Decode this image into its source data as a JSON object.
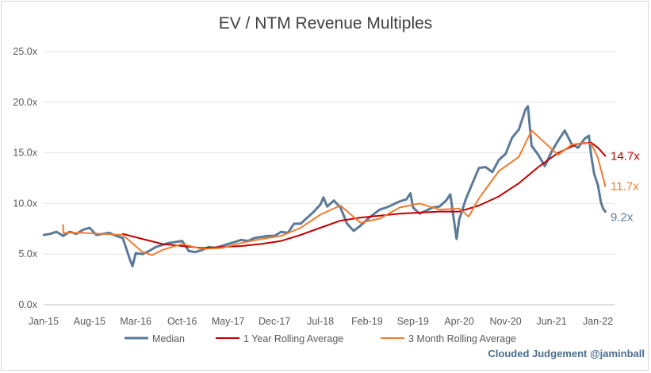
{
  "chart_data": {
    "type": "line",
    "title": "EV / NTM Revenue Multiples",
    "xlabel": "",
    "ylabel": "",
    "ylim": [
      0,
      25
    ],
    "y_ticks": [
      0,
      5,
      10,
      15,
      20,
      25
    ],
    "y_tick_labels": [
      "0.0x",
      "5.0x",
      "10.0x",
      "15.0x",
      "20.0x",
      "25.0x"
    ],
    "x_tick_labels": [
      "Jan-15",
      "Aug-15",
      "Mar-16",
      "Oct-16",
      "May-17",
      "Dec-17",
      "Jul-18",
      "Feb-19",
      "Sep-19",
      "Apr-20",
      "Nov-20",
      "Jun-21",
      "Jan-22"
    ],
    "grid": true,
    "legend_position": "bottom",
    "series": [
      {
        "name": "Median",
        "color": "#5b7a99",
        "end_label": "9.2x",
        "points": [
          [
            "2015-01-02",
            6.9
          ],
          [
            "2015-02-01",
            7.0
          ],
          [
            "2015-03-01",
            7.2
          ],
          [
            "2015-04-01",
            6.8
          ],
          [
            "2015-05-01",
            7.2
          ],
          [
            "2015-06-01",
            7.0
          ],
          [
            "2015-07-01",
            7.4
          ],
          [
            "2015-08-01",
            7.6
          ],
          [
            "2015-09-01",
            6.9
          ],
          [
            "2015-10-01",
            7.0
          ],
          [
            "2015-11-01",
            7.1
          ],
          [
            "2015-12-01",
            6.8
          ],
          [
            "2016-01-01",
            6.6
          ],
          [
            "2016-02-01",
            4.6
          ],
          [
            "2016-02-15",
            3.8
          ],
          [
            "2016-03-01",
            5.1
          ],
          [
            "2016-04-01",
            5.0
          ],
          [
            "2016-05-01",
            5.3
          ],
          [
            "2016-06-01",
            5.7
          ],
          [
            "2016-07-01",
            5.9
          ],
          [
            "2016-08-01",
            6.1
          ],
          [
            "2016-09-01",
            6.2
          ],
          [
            "2016-10-01",
            6.3
          ],
          [
            "2016-11-01",
            5.3
          ],
          [
            "2016-12-01",
            5.2
          ],
          [
            "2017-01-01",
            5.4
          ],
          [
            "2017-02-01",
            5.7
          ],
          [
            "2017-03-01",
            5.6
          ],
          [
            "2017-04-01",
            5.8
          ],
          [
            "2017-05-01",
            6.0
          ],
          [
            "2017-06-01",
            6.2
          ],
          [
            "2017-07-01",
            6.4
          ],
          [
            "2017-08-01",
            6.3
          ],
          [
            "2017-09-01",
            6.6
          ],
          [
            "2017-10-01",
            6.7
          ],
          [
            "2017-11-01",
            6.8
          ],
          [
            "2017-12-01",
            6.8
          ],
          [
            "2018-01-01",
            7.2
          ],
          [
            "2018-02-01",
            7.1
          ],
          [
            "2018-03-01",
            8.0
          ],
          [
            "2018-04-01",
            8.0
          ],
          [
            "2018-05-01",
            8.6
          ],
          [
            "2018-06-01",
            9.2
          ],
          [
            "2018-07-01",
            9.9
          ],
          [
            "2018-07-15",
            10.6
          ],
          [
            "2018-08-01",
            9.7
          ],
          [
            "2018-09-01",
            10.3
          ],
          [
            "2018-10-01",
            9.6
          ],
          [
            "2018-11-01",
            8.0
          ],
          [
            "2018-12-01",
            7.3
          ],
          [
            "2019-01-01",
            7.8
          ],
          [
            "2019-02-01",
            8.4
          ],
          [
            "2019-03-01",
            8.9
          ],
          [
            "2019-04-01",
            9.4
          ],
          [
            "2019-05-01",
            9.6
          ],
          [
            "2019-06-01",
            9.9
          ],
          [
            "2019-07-01",
            10.2
          ],
          [
            "2019-08-01",
            10.4
          ],
          [
            "2019-08-20",
            11.0
          ],
          [
            "2019-09-01",
            9.6
          ],
          [
            "2019-10-01",
            9.0
          ],
          [
            "2019-11-01",
            9.3
          ],
          [
            "2019-12-01",
            9.6
          ],
          [
            "2020-01-01",
            9.7
          ],
          [
            "2020-02-01",
            10.3
          ],
          [
            "2020-02-20",
            10.9
          ],
          [
            "2020-03-10",
            8.0
          ],
          [
            "2020-03-20",
            6.5
          ],
          [
            "2020-04-01",
            8.4
          ],
          [
            "2020-05-01",
            10.4
          ],
          [
            "2020-06-01",
            12.0
          ],
          [
            "2020-07-01",
            13.5
          ],
          [
            "2020-08-01",
            13.6
          ],
          [
            "2020-09-01",
            13.1
          ],
          [
            "2020-10-01",
            14.3
          ],
          [
            "2020-11-01",
            14.9
          ],
          [
            "2020-12-01",
            16.5
          ],
          [
            "2021-01-01",
            17.3
          ],
          [
            "2021-02-01",
            19.3
          ],
          [
            "2021-02-12",
            19.6
          ],
          [
            "2021-03-01",
            15.7
          ],
          [
            "2021-04-01",
            14.8
          ],
          [
            "2021-05-01",
            13.7
          ],
          [
            "2021-06-01",
            15.1
          ],
          [
            "2021-07-01",
            16.2
          ],
          [
            "2021-08-01",
            17.2
          ],
          [
            "2021-09-01",
            15.9
          ],
          [
            "2021-10-01",
            15.5
          ],
          [
            "2021-11-01",
            16.4
          ],
          [
            "2021-11-20",
            16.7
          ],
          [
            "2021-12-01",
            14.7
          ],
          [
            "2021-12-15",
            12.9
          ],
          [
            "2022-01-01",
            11.8
          ],
          [
            "2022-01-15",
            10.1
          ],
          [
            "2022-01-25",
            9.5
          ],
          [
            "2022-02-04",
            9.2
          ]
        ]
      },
      {
        "name": "1 Year Rolling Average",
        "color": "#c00000",
        "end_label": "14.7x",
        "points": [
          [
            "2016-01-01",
            7.0
          ],
          [
            "2016-04-01",
            6.5
          ],
          [
            "2016-07-01",
            6.0
          ],
          [
            "2016-10-01",
            5.8
          ],
          [
            "2017-01-01",
            5.6
          ],
          [
            "2017-04-01",
            5.7
          ],
          [
            "2017-07-01",
            5.8
          ],
          [
            "2017-10-01",
            6.0
          ],
          [
            "2018-01-01",
            6.3
          ],
          [
            "2018-04-01",
            6.9
          ],
          [
            "2018-07-01",
            7.6
          ],
          [
            "2018-10-01",
            8.3
          ],
          [
            "2019-01-01",
            8.6
          ],
          [
            "2019-04-01",
            8.8
          ],
          [
            "2019-07-01",
            9.0
          ],
          [
            "2019-10-01",
            9.1
          ],
          [
            "2020-01-01",
            9.2
          ],
          [
            "2020-04-01",
            9.2
          ],
          [
            "2020-07-01",
            9.8
          ],
          [
            "2020-10-01",
            10.7
          ],
          [
            "2021-01-01",
            12.0
          ],
          [
            "2021-04-01",
            13.6
          ],
          [
            "2021-07-01",
            15.0
          ],
          [
            "2021-10-01",
            15.9
          ],
          [
            "2021-12-01",
            16.0
          ],
          [
            "2022-01-01",
            15.5
          ],
          [
            "2022-02-04",
            14.7
          ]
        ]
      },
      {
        "name": "3 Month Rolling Average",
        "color": "#ed7d31",
        "end_label": "11.7x",
        "points": [
          [
            "2015-04-01",
            7.9
          ],
          [
            "2015-04-02",
            7.1
          ],
          [
            "2015-07-01",
            7.1
          ],
          [
            "2015-10-01",
            7.0
          ],
          [
            "2016-01-01",
            6.9
          ],
          [
            "2016-04-01",
            5.2
          ],
          [
            "2016-05-15",
            4.9
          ],
          [
            "2016-07-01",
            5.4
          ],
          [
            "2016-10-01",
            6.0
          ],
          [
            "2017-01-01",
            5.5
          ],
          [
            "2017-04-01",
            5.6
          ],
          [
            "2017-07-01",
            6.1
          ],
          [
            "2017-10-01",
            6.5
          ],
          [
            "2018-01-01",
            6.8
          ],
          [
            "2018-04-01",
            7.6
          ],
          [
            "2018-07-01",
            8.9
          ],
          [
            "2018-10-01",
            9.8
          ],
          [
            "2019-01-01",
            8.1
          ],
          [
            "2019-04-01",
            8.5
          ],
          [
            "2019-07-01",
            9.6
          ],
          [
            "2019-10-01",
            10.0
          ],
          [
            "2020-01-01",
            9.4
          ],
          [
            "2020-04-01",
            9.5
          ],
          [
            "2020-05-15",
            8.7
          ],
          [
            "2020-07-01",
            10.5
          ],
          [
            "2020-10-01",
            13.2
          ],
          [
            "2021-01-01",
            14.6
          ],
          [
            "2021-03-01",
            17.2
          ],
          [
            "2021-05-01",
            16.0
          ],
          [
            "2021-07-01",
            14.8
          ],
          [
            "2021-09-01",
            15.8
          ],
          [
            "2021-11-01",
            16.0
          ],
          [
            "2021-12-01",
            15.9
          ],
          [
            "2022-01-01",
            14.5
          ],
          [
            "2022-02-04",
            11.7
          ]
        ]
      }
    ]
  },
  "watermark": "Clouded Judgement @jaminball"
}
